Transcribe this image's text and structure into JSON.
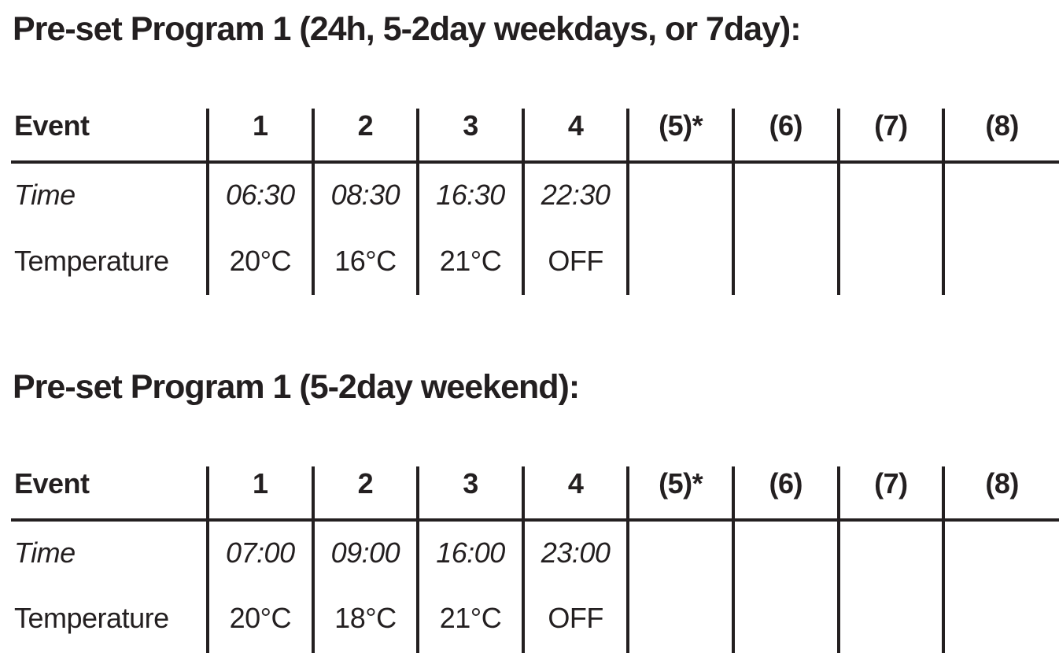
{
  "page": {
    "background_color": "#ffffff",
    "text_color": "#231f20",
    "rule_color": "#231f20"
  },
  "sections": [
    {
      "title": "Pre-set Program 1 (24h, 5-2day weekdays, or 7day):",
      "table": {
        "header": [
          "Event",
          "1",
          "2",
          "3",
          "4",
          "(5)*",
          "(6)",
          "(7)",
          "(8)"
        ],
        "rows": [
          {
            "label": "Time",
            "values": [
              "06:30",
              "08:30",
              "16:30",
              "22:30",
              "",
              "",
              "",
              ""
            ]
          },
          {
            "label": "Temperature",
            "values": [
              "20°C",
              "16°C",
              "21°C",
              "OFF",
              "",
              "",
              "",
              ""
            ]
          }
        ]
      }
    },
    {
      "title": "Pre-set Program 1 (5-2day weekend):",
      "table": {
        "header": [
          "Event",
          "1",
          "2",
          "3",
          "4",
          "(5)*",
          "(6)",
          "(7)",
          "(8)"
        ],
        "rows": [
          {
            "label": "Time",
            "values": [
              "07:00",
              "09:00",
              "16:00",
              "23:00",
              "",
              "",
              "",
              ""
            ]
          },
          {
            "label": "Temperature",
            "values": [
              "20°C",
              "18°C",
              "21°C",
              "OFF",
              "",
              "",
              "",
              ""
            ]
          }
        ]
      }
    }
  ]
}
